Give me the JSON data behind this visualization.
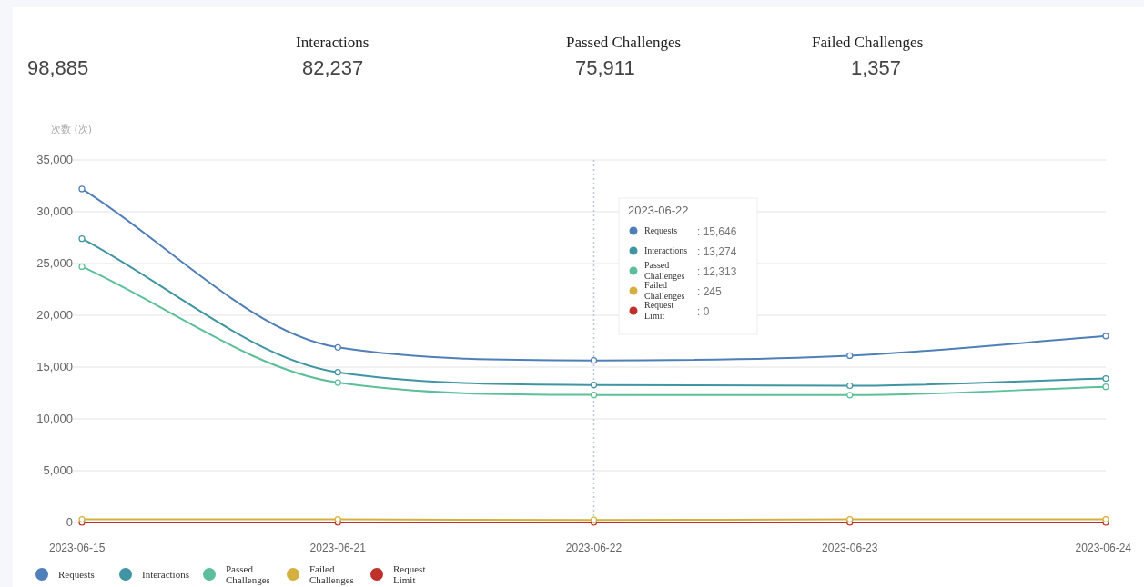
{
  "chart_data": {
    "type": "line",
    "ylabel": "次数 (次)",
    "categories": [
      "2023-06-15",
      "2023-06-21",
      "2023-06-22",
      "2023-06-23",
      "2023-06-24"
    ],
    "series": [
      {
        "name": "Requests",
        "color": "#4f7fb8",
        "values": [
          32200,
          16900,
          15646,
          16100,
          18000
        ]
      },
      {
        "name": "Interactions",
        "color": "#3f95a3",
        "values": [
          27400,
          14500,
          13274,
          13200,
          13900
        ]
      },
      {
        "name": "Passed Challenges",
        "color": "#5cbf9a",
        "values": [
          24700,
          13500,
          12313,
          12300,
          13100
        ]
      },
      {
        "name": "Failed Challenges",
        "color": "#d4b040",
        "values": [
          300,
          300,
          245,
          300,
          300
        ]
      },
      {
        "name": "Request Limit",
        "color": "#c0302a",
        "values": [
          0,
          0,
          0,
          0,
          0
        ]
      }
    ],
    "ylim": [
      0,
      35000
    ],
    "yticks": [
      {
        "value": 0,
        "label": "0"
      },
      {
        "value": 5000,
        "label": "5,000"
      },
      {
        "value": 10000,
        "label": "10,000"
      },
      {
        "value": 15000,
        "label": "15,000"
      },
      {
        "value": 20000,
        "label": "20,000"
      },
      {
        "value": 25000,
        "label": "25,000"
      },
      {
        "value": 30000,
        "label": "30,000"
      },
      {
        "value": 35000,
        "label": "35,000"
      }
    ],
    "grid": "y",
    "legend": "bottom left",
    "marker": "circle",
    "line_style": "solid",
    "ref_lines": [
      {
        "axis": "x",
        "value": "2023-06-22",
        "line_style": "dotted",
        "color": "#b8c8d8"
      }
    ],
    "annotations": [
      "98,885",
      "Interactions",
      "82,237",
      "Passed Challenges",
      "75,911",
      "Failed Challenges",
      "1,357",
      "2023-06-22",
      "Requests : 15,646",
      "Interactions : 13,274",
      "Passed Challenges : 12,313",
      "Failed Challenges : 245",
      "Request Limit : 0"
    ]
  }
}
